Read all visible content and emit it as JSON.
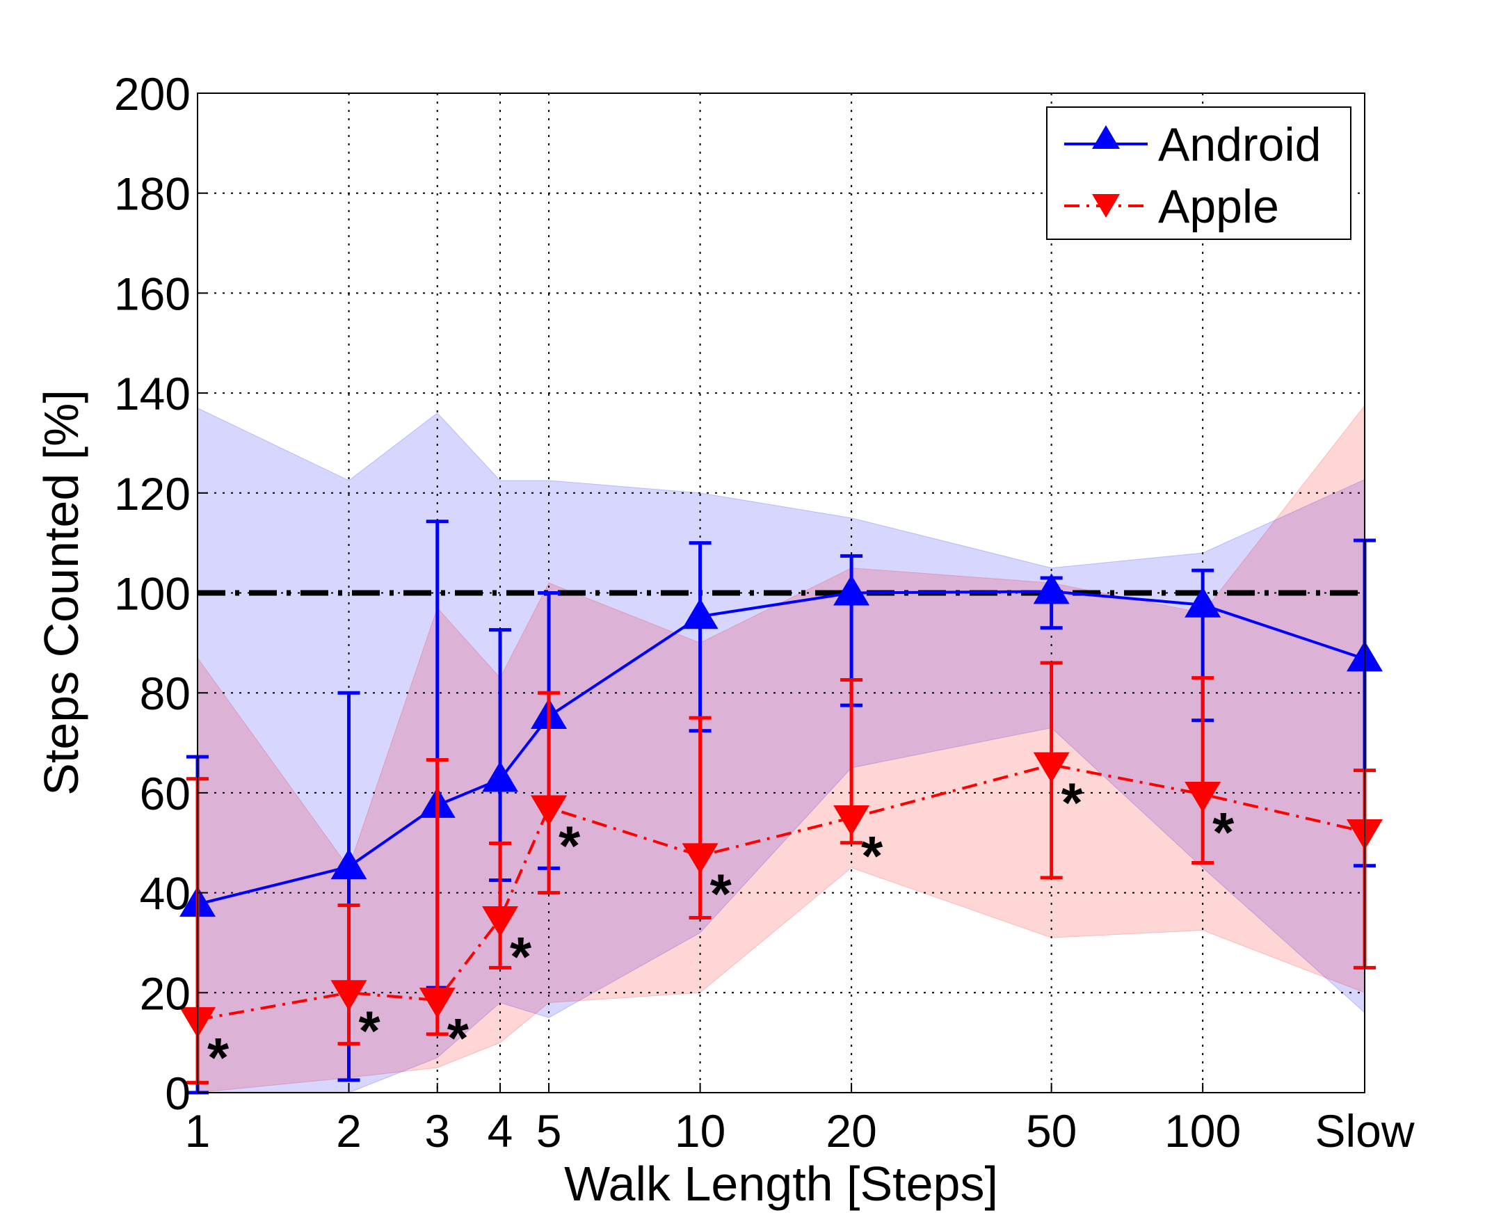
{
  "chart_data": {
    "type": "line",
    "xlabel": "Walk Length [Steps]",
    "ylabel": "Steps Counted [%]",
    "ylim": [
      0,
      200
    ],
    "yticks": [
      0,
      20,
      40,
      60,
      80,
      100,
      120,
      140,
      160,
      180,
      200
    ],
    "x_scale": "log",
    "categories": [
      "1",
      "2",
      "3",
      "4",
      "5",
      "10",
      "20",
      "50",
      "100",
      "Slow"
    ],
    "x": [
      1,
      2,
      3,
      4,
      5,
      10,
      20,
      50,
      100,
      210
    ],
    "grid": true,
    "legend_position": "top-right",
    "reference_line": {
      "y": 100,
      "style": "dash-dot",
      "color": "#000000"
    },
    "significance_marker": "*",
    "series": [
      {
        "name": "Android",
        "color": "#0000ff",
        "marker": "triangle-up",
        "linestyle": "solid",
        "values": [
          37.7,
          45.2,
          57.5,
          62.7,
          75.3,
          95.3,
          100,
          100.3,
          97.6,
          86.8
        ],
        "err_upper": [
          67.2,
          80,
          114.3,
          92.6,
          100,
          110,
          107.4,
          103,
          104.5,
          110.5
        ],
        "err_lower": [
          0,
          2.5,
          21,
          42.5,
          44.9,
          72.4,
          77.5,
          93,
          74.5,
          45.4
        ],
        "band_upper": [
          137,
          122.5,
          136,
          122.5,
          122.5,
          120,
          115,
          105,
          108,
          122.7
        ],
        "band_lower": [
          0,
          0,
          7,
          18,
          15,
          32,
          65,
          73,
          45,
          16
        ],
        "band_color": "#d6d6fb"
      },
      {
        "name": "Apple",
        "color": "#ff0000",
        "marker": "triangle-down",
        "linestyle": "dash-dot",
        "values": [
          14.6,
          20,
          18.5,
          34.8,
          57,
          47.4,
          55,
          65.6,
          59.7,
          52.2
        ],
        "err_upper": [
          62.8,
          37.5,
          66.6,
          49.9,
          80,
          75,
          82.6,
          86,
          83,
          64.5
        ],
        "err_lower": [
          2,
          9.8,
          11.7,
          25,
          40,
          35,
          50,
          43,
          46,
          25
        ],
        "band_upper": [
          87,
          45,
          97,
          83,
          102,
          90,
          105,
          102,
          96,
          137.5
        ],
        "band_lower": [
          0,
          3,
          5,
          10,
          18,
          20,
          45,
          31,
          32.5,
          20
        ],
        "band_color": "#fbd6d6",
        "significant": [
          true,
          true,
          true,
          true,
          true,
          true,
          true,
          true,
          true,
          false
        ]
      }
    ]
  }
}
